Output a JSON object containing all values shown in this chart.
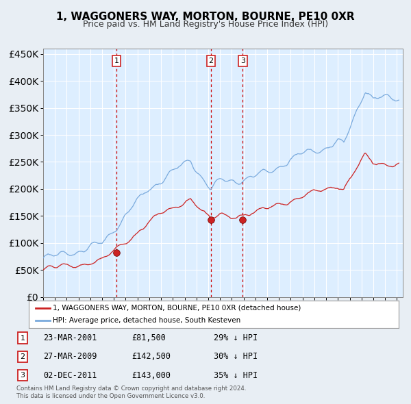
{
  "title": "1, WAGGONERS WAY, MORTON, BOURNE, PE10 0XR",
  "subtitle": "Price paid vs. HM Land Registry's House Price Index (HPI)",
  "legend_line1": "1, WAGGONERS WAY, MORTON, BOURNE, PE10 0XR (detached house)",
  "legend_line2": "HPI: Average price, detached house, South Kesteven",
  "sale1_date": "23-MAR-2001",
  "sale1_price": 81500,
  "sale1_label": "29% ↓ HPI",
  "sale2_date": "27-MAR-2009",
  "sale2_price": 142500,
  "sale2_label": "30% ↓ HPI",
  "sale3_date": "02-DEC-2011",
  "sale3_price": 143000,
  "sale3_label": "35% ↓ HPI",
  "footnote1": "Contains HM Land Registry data © Crown copyright and database right 2024.",
  "footnote2": "This data is licensed under the Open Government Licence v3.0.",
  "hpi_color": "#7aaadd",
  "price_color": "#cc2222",
  "background_color": "#e8eef4",
  "plot_bg_color": "#ddeeff",
  "grid_color": "#ffffff",
  "vline_color": "#cc0000",
  "box_color": "#cc2222",
  "ylim": [
    0,
    460000
  ],
  "yticks": [
    0,
    50000,
    100000,
    150000,
    200000,
    250000,
    300000,
    350000,
    400000,
    450000
  ],
  "xlim_start": 1995.0,
  "xlim_end": 2025.5
}
